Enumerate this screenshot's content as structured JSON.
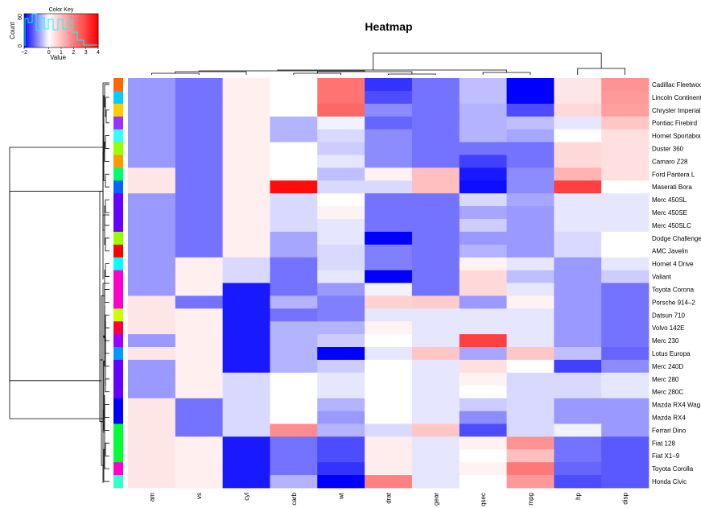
{
  "chart_data": {
    "type": "heatmap",
    "title": "Heatmap",
    "columns": [
      "am",
      "vs",
      "cyl",
      "carb",
      "wt",
      "drat",
      "gear",
      "qsec",
      "mpg",
      "hp",
      "disp"
    ],
    "rows": [
      "Cadillac Fleetwood",
      "Lincoln Continental",
      "Chrysler Imperial",
      "Pontiac Firebird",
      "Hornet Sportabout",
      "Duster 360",
      "Camaro Z28",
      "Ford Pantera L",
      "Maserati Bora",
      "Merc 450SL",
      "Merc 450SE",
      "Merc 450SLC",
      "Dodge Challenger",
      "AMC Javelin",
      "Hornet 4 Drive",
      "Valiant",
      "Toyota Corona",
      "Porsche 914-2",
      "Datsun 710",
      "Volvo 142E",
      "Merc 230",
      "Lotus Europa",
      "Merc 240D",
      "Merc 280",
      "Merc 280C",
      "Mazda RX4 Wag",
      "Mazda RX4",
      "Ferrari Dino",
      "Fiat 128",
      "Fiat X1-9",
      "Toyota Corolla",
      "Honda Civic"
    ],
    "row_display_labels": [
      "Cadillac Fleetwoo",
      "Lincoln Continent",
      "Chrysler Imperial",
      "Pontiac Firebird",
      "Hornet Sportabou",
      "Duster 360",
      "Camaro Z28",
      "Ford Pantera L",
      "Maserati Bora",
      "Merc 450SL",
      "Merc 450SE",
      "Merc 450SLC",
      "Dodge Challenge",
      "AMC Javelin",
      "Hornet 4 Drive",
      "Valiant",
      "Toyota Corona",
      "Porsche 914–2",
      "Datsun 710",
      "Volvo 142E",
      "Merc 230",
      "Lotus Europa",
      "Merc 240D",
      "Merc 280",
      "Merc 280C",
      "Mazda RX4 Wag",
      "Mazda RX4",
      "Ferrari Dino",
      "Fiat 128",
      "Fiat X1–9",
      "Toyota Corolla",
      "Honda Civic"
    ],
    "values": [
      [
        -0.8,
        -1.1,
        0.25,
        0,
        2.2,
        -1.6,
        -1.1,
        -0.5,
        -2.2,
        0.4,
        1.7
      ],
      [
        -0.8,
        -1.1,
        0.25,
        0,
        2.2,
        -1.4,
        -1.1,
        -0.5,
        -2.2,
        0.4,
        1.6
      ],
      [
        -0.8,
        -1.1,
        0.25,
        0,
        2.4,
        -0.9,
        -1.1,
        -0.6,
        -1.4,
        0.6,
        1.5
      ],
      [
        -0.8,
        -1.1,
        0.25,
        -0.6,
        -0.1,
        -1.2,
        -1.1,
        -0.6,
        -0.5,
        -0.2,
        0.9
      ],
      [
        -0.8,
        -1.1,
        0.25,
        -0.6,
        -0.3,
        -0.9,
        -1.1,
        -0.6,
        -0.7,
        0.0,
        0.5
      ],
      [
        -0.8,
        -1.1,
        0.25,
        0,
        -0.4,
        -0.9,
        -1.1,
        -1.1,
        -1.1,
        0.6,
        0.5
      ],
      [
        -0.8,
        -1.1,
        0.25,
        0,
        -0.2,
        -0.9,
        -1.1,
        -1.5,
        -1.1,
        0.6,
        0.5
      ],
      [
        0.4,
        -1.1,
        0.25,
        0,
        -0.5,
        0.2,
        1.0,
        -1.8,
        -0.9,
        1.2,
        0.5
      ],
      [
        0.4,
        -1.1,
        0.25,
        3.8,
        -0.3,
        -0.3,
        1.0,
        -1.9,
        -0.9,
        3.0,
        0.0
      ],
      [
        -0.8,
        -1.1,
        0.25,
        -0.3,
        0,
        -1.1,
        -1.1,
        -0.3,
        -0.7,
        -0.2,
        -0.2
      ],
      [
        -0.8,
        -1.1,
        0.25,
        -0.3,
        0.2,
        -1.1,
        -1.1,
        -0.7,
        -0.8,
        -0.2,
        -0.2
      ],
      [
        -0.8,
        -1.1,
        0.25,
        -0.3,
        -0.2,
        -1.1,
        -1.1,
        -0.4,
        -0.8,
        -0.2,
        -0.2
      ],
      [
        -0.8,
        -1.1,
        0.25,
        -0.7,
        -0.2,
        -2.0,
        -1.1,
        -0.8,
        -0.8,
        -0.3,
        0.0
      ],
      [
        -0.8,
        -1.1,
        0.25,
        -0.7,
        -0.3,
        -1.0,
        -1.1,
        -0.6,
        -0.8,
        -0.3,
        0.0
      ],
      [
        -0.8,
        0.25,
        -0.3,
        -1.1,
        -0.3,
        -1.0,
        -1.1,
        0.2,
        -0.2,
        -0.8,
        -0.2
      ],
      [
        -0.8,
        0.25,
        -0.3,
        -1.1,
        -0.2,
        -2.0,
        -1.1,
        0.6,
        -0.5,
        -0.8,
        -0.4
      ],
      [
        -0.8,
        0.25,
        -1.8,
        -1.1,
        -0.8,
        -0.1,
        -1.1,
        0.6,
        -0.2,
        -0.8,
        -1.1
      ],
      [
        0.4,
        -1.1,
        -1.8,
        -0.6,
        -1.0,
        0.7,
        0.8,
        -0.8,
        0.2,
        -0.8,
        -1.1
      ],
      [
        0.4,
        0.25,
        -1.8,
        -1.1,
        -1.0,
        -0.2,
        -0.2,
        -0.2,
        -0.2,
        -0.8,
        -1.1
      ],
      [
        0.4,
        0.25,
        -1.8,
        -0.6,
        -0.6,
        0.2,
        -0.2,
        -0.2,
        -0.2,
        -0.8,
        -1.1
      ],
      [
        -0.8,
        0.25,
        -1.8,
        -0.6,
        -0.4,
        0,
        -0.2,
        3.0,
        -0.2,
        -0.8,
        -1.1
      ],
      [
        0.4,
        0.25,
        -1.8,
        -0.6,
        -2.0,
        -0.2,
        0.9,
        -0.7,
        0.9,
        -0.5,
        -1.2
      ],
      [
        -0.8,
        0.25,
        -1.8,
        -0.6,
        -0.4,
        0,
        -0.2,
        0.5,
        0,
        -1.5,
        -0.9
      ],
      [
        -0.8,
        0.25,
        -0.3,
        0,
        -0.2,
        0,
        -0.2,
        0.2,
        -0.3,
        -0.3,
        -0.2
      ],
      [
        -0.8,
        0.25,
        -0.3,
        0,
        -0.2,
        0,
        -0.2,
        0,
        -0.3,
        -0.3,
        -0.2
      ],
      [
        0.4,
        -1.1,
        -0.3,
        0,
        -0.6,
        0,
        -0.2,
        -0.4,
        -0.3,
        -0.8,
        -0.8
      ],
      [
        0.4,
        -1.1,
        -0.3,
        0,
        -0.8,
        0,
        -0.2,
        -0.9,
        -0.3,
        -0.8,
        -0.8
      ],
      [
        0.4,
        -1.1,
        -0.3,
        1.8,
        -0.6,
        -0.3,
        0.9,
        -1.4,
        -0.3,
        -0.1,
        -0.8
      ],
      [
        0.4,
        0.25,
        -1.8,
        -1.1,
        -1.4,
        0.3,
        -0.2,
        0.2,
        1.7,
        -1.1,
        -1.3
      ],
      [
        0.4,
        0.25,
        -1.8,
        -1.1,
        -1.4,
        0.3,
        -0.2,
        0,
        1.0,
        -1.1,
        -1.3
      ],
      [
        0.4,
        0.25,
        -1.8,
        -1.1,
        -1.6,
        0.3,
        -0.2,
        0.2,
        2.1,
        -1.2,
        -1.3
      ],
      [
        0.4,
        0.25,
        -1.8,
        -0.6,
        -2.0,
        2.0,
        -0.2,
        0,
        1.6,
        -1.4,
        -1.3
      ]
    ],
    "row_side_colors": [
      "#ff6600",
      "#00ccff",
      "#ffcc00",
      "#9933ff",
      "#33ffff",
      "#99ff00",
      "#ff9900",
      "#00ff66",
      "#0066ff",
      "#6600ff",
      "#6600ff",
      "#6600ff",
      "#99ff00",
      "#ff0000",
      "#00ffff",
      "#ff00cc",
      "#ff00cc",
      "#ff00cc",
      "#ccff00",
      "#ff0033",
      "#9900ff",
      "#0099ff",
      "#6600ff",
      "#6600ff",
      "#6600ff",
      "#0000ff",
      "#0000ff",
      "#00ff33",
      "#00ff33",
      "#00ff33",
      "#ff00cc",
      "#33ffcc"
    ],
    "color_scale": {
      "low": "#0000ff",
      "mid": "#ffffff",
      "high": "#ff0000",
      "min": -2,
      "max": 4
    },
    "color_key": {
      "title": "Color Key",
      "xlabel": "Value",
      "ylabel": "Count",
      "x_ticks": [
        "−2",
        "0",
        "1",
        "2",
        "3",
        "4"
      ],
      "y_ticks": [
        "0",
        "60"
      ],
      "histogram_color": "#00ffff"
    },
    "row_dendrogram": [
      [
        2,
        3
      ],
      [
        1,
        101
      ],
      [
        0,
        102
      ],
      [
        4,
        5
      ],
      [
        104,
        6
      ],
      [
        103,
        105
      ],
      [
        7,
        8
      ],
      [
        106,
        107
      ],
      [
        9,
        10
      ],
      [
        109,
        11
      ],
      [
        12,
        13
      ],
      [
        110,
        111
      ],
      [
        108,
        112
      ],
      [
        14,
        15
      ],
      [
        18,
        19
      ],
      [
        114,
        20
      ],
      [
        21,
        115
      ],
      [
        116,
        22
      ],
      [
        23,
        24
      ],
      [
        117,
        118
      ],
      [
        16,
        17
      ],
      [
        120,
        119
      ],
      [
        25,
        26
      ],
      [
        122,
        27
      ],
      [
        28,
        29
      ],
      [
        124,
        30
      ],
      [
        125,
        31
      ],
      [
        123,
        126
      ],
      [
        121,
        127
      ],
      [
        113,
        128
      ],
      [
        129,
        113
      ]
    ],
    "column_order_note": ""
  }
}
